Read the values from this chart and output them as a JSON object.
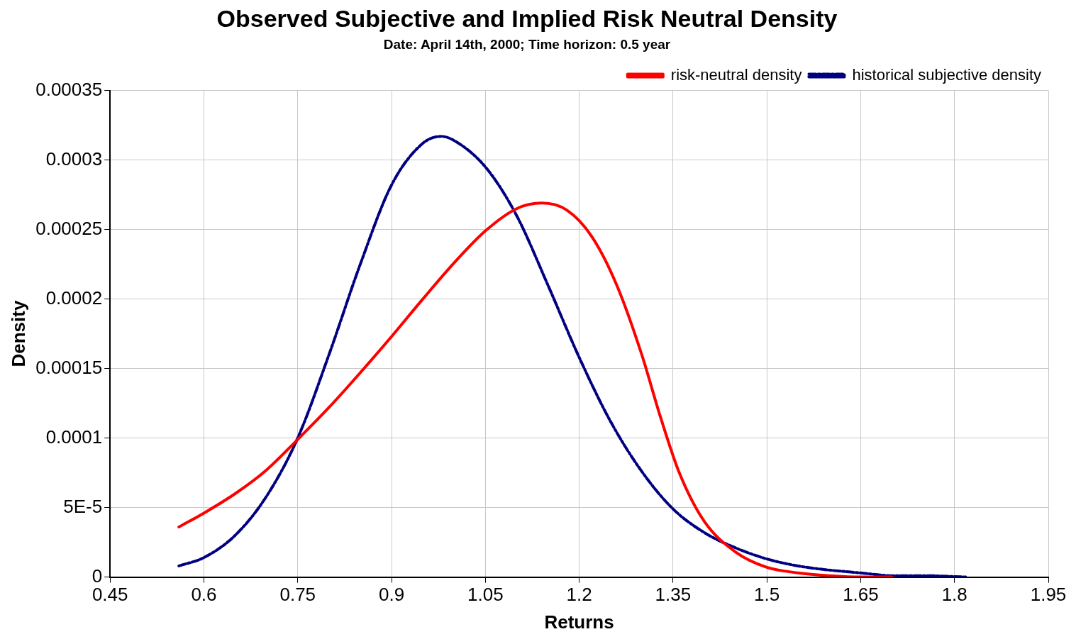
{
  "chart_data": {
    "type": "line",
    "title": "Observed Subjective and Implied Risk Neutral Density",
    "subtitle": "Date: April 14th, 2000; Time horizon: 0.5 year",
    "xlabel": "Returns",
    "ylabel": "Density",
    "xlim": [
      0.45,
      1.95
    ],
    "xticks": [
      0.45,
      0.6,
      0.75,
      0.9,
      1.05,
      1.2,
      1.35,
      1.5,
      1.65,
      1.8,
      1.95
    ],
    "ylim": [
      0,
      0.00035
    ],
    "yticks": [
      0,
      {
        "value": 5e-05,
        "label": "5E-5"
      },
      0.0001,
      0.00015,
      0.0002,
      0.00025,
      0.0003,
      0.00035
    ],
    "grid": true,
    "legend": "top right",
    "marker": "none",
    "series": [
      {
        "name": "risk-neutral density",
        "color": "#ff0000",
        "line_style": "solid",
        "x": [
          0.56,
          0.6,
          0.65,
          0.7,
          0.75,
          0.8,
          0.85,
          0.9,
          0.95,
          1.0,
          1.05,
          1.1,
          1.14,
          1.18,
          1.22,
          1.26,
          1.3,
          1.33,
          1.36,
          1.4,
          1.45,
          1.5,
          1.55,
          1.6,
          1.65,
          1.7
        ],
        "values": [
          3.6e-05,
          4.6e-05,
          6e-05,
          7.7e-05,
          9.9e-05,
          0.000122,
          0.000147,
          0.000173,
          0.0002,
          0.000226,
          0.000249,
          0.000265,
          0.000269,
          0.000264,
          0.000245,
          0.00021,
          0.00016,
          0.000115,
          7.5e-05,
          4e-05,
          1.8e-05,
          7e-06,
          3e-06,
          1e-06,
          0,
          0
        ]
      },
      {
        "name": "historical subjective density",
        "color": "#000080",
        "line_style": "dashed",
        "x": [
          0.56,
          0.6,
          0.65,
          0.7,
          0.75,
          0.8,
          0.85,
          0.9,
          0.95,
          0.98,
          1.0,
          1.05,
          1.1,
          1.15,
          1.2,
          1.25,
          1.3,
          1.35,
          1.4,
          1.45,
          1.5,
          1.55,
          1.6,
          1.65,
          1.7,
          1.75,
          1.82
        ],
        "values": [
          8e-06,
          1.4e-05,
          3e-05,
          5.8e-05,
          0.0001,
          0.00016,
          0.000225,
          0.000282,
          0.000312,
          0.000317,
          0.000314,
          0.000295,
          0.00026,
          0.00021,
          0.000158,
          0.000112,
          7.6e-05,
          4.9e-05,
          3.2e-05,
          2.1e-05,
          1.3e-05,
          8e-06,
          5e-06,
          3e-06,
          1e-06,
          1e-06,
          0
        ]
      }
    ]
  }
}
